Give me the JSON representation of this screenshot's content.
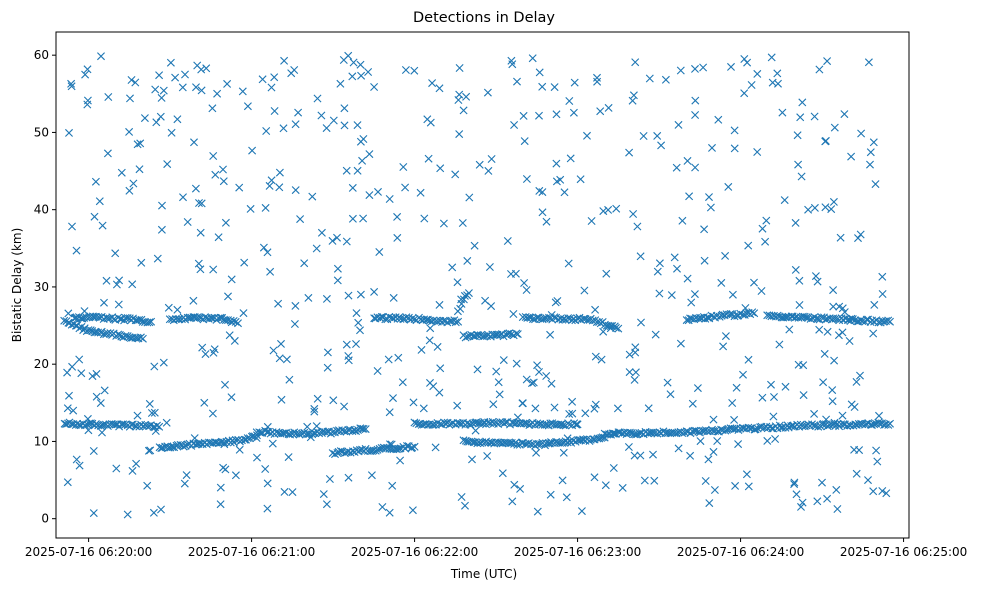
{
  "chart_data": {
    "type": "scatter",
    "title": "Detections in Delay",
    "xlabel": "Time (UTC)",
    "ylabel": "Bistatic Delay (km)",
    "marker": "x",
    "color": "#1f77b4",
    "x_unit": "seconds after 2025-07-16 06:19:00 UTC",
    "xlim": [
      48,
      362
    ],
    "ylim": [
      -2.5,
      63
    ],
    "xticks": [
      {
        "value": 60,
        "label": "2025-07-16 06:20:00"
      },
      {
        "value": 120,
        "label": "2025-07-16 06:21:00"
      },
      {
        "value": 180,
        "label": "2025-07-16 06:22:00"
      },
      {
        "value": 240,
        "label": "2025-07-16 06:23:00"
      },
      {
        "value": 300,
        "label": "2025-07-16 06:24:00"
      },
      {
        "value": 360,
        "label": "2025-07-16 06:25:00"
      }
    ],
    "yticks": [
      {
        "value": 0,
        "label": "0"
      },
      {
        "value": 10,
        "label": "10"
      },
      {
        "value": 20,
        "label": "20"
      },
      {
        "value": 30,
        "label": "30"
      },
      {
        "value": 40,
        "label": "40"
      },
      {
        "value": 50,
        "label": "50"
      },
      {
        "value": 60,
        "label": "60"
      }
    ],
    "grid": false,
    "time_range": [
      "2025-07-16 06:19:51",
      "2025-07-16 06:24:55"
    ],
    "delay_range_km": [
      0.5,
      60
    ],
    "tracks": [
      {
        "description": "lower track A",
        "points": [
          [
            51,
            12.3
          ],
          [
            60,
            12.2
          ],
          [
            70,
            12.1
          ],
          [
            80,
            12.0
          ],
          [
            86,
            11.9
          ]
        ]
      },
      {
        "description": "lower track B",
        "points": [
          [
            86,
            9.2
          ],
          [
            100,
            9.6
          ],
          [
            110,
            9.9
          ],
          [
            118,
            10.2
          ],
          [
            122,
            10.8
          ]
        ]
      },
      {
        "description": "lower track C",
        "points": [
          [
            122,
            11.3
          ],
          [
            130,
            11.1
          ],
          [
            140,
            11.0
          ],
          [
            150,
            11.2
          ],
          [
            162,
            11.6
          ]
        ]
      },
      {
        "description": "lower track D",
        "points": [
          [
            150,
            8.5
          ],
          [
            160,
            8.8
          ],
          [
            170,
            9.1
          ],
          [
            180,
            9.3
          ]
        ]
      },
      {
        "description": "lower track E",
        "points": [
          [
            180,
            12.3
          ],
          [
            195,
            12.3
          ],
          [
            210,
            12.4
          ],
          [
            230,
            12.2
          ],
          [
            240,
            12.2
          ]
        ]
      },
      {
        "description": "lower track F",
        "points": [
          [
            198,
            10.0
          ],
          [
            210,
            9.8
          ],
          [
            225,
            9.6
          ],
          [
            240,
            10.0
          ],
          [
            250,
            10.5
          ]
        ]
      },
      {
        "description": "lower track G",
        "points": [
          [
            250,
            11.0
          ],
          [
            265,
            11.1
          ],
          [
            280,
            11.2
          ],
          [
            300,
            11.6
          ],
          [
            320,
            12.0
          ],
          [
            355,
            12.3
          ]
        ]
      },
      {
        "description": "upper track A",
        "points": [
          [
            51,
            25.5
          ],
          [
            60,
            24.3
          ],
          [
            70,
            23.8
          ],
          [
            80,
            23.3
          ]
        ]
      },
      {
        "description": "upper track B",
        "points": [
          [
            55,
            26.1
          ],
          [
            65,
            26.0
          ],
          [
            75,
            25.8
          ],
          [
            83,
            25.5
          ]
        ]
      },
      {
        "description": "upper track C",
        "points": [
          [
            90,
            25.8
          ],
          [
            100,
            26.0
          ],
          [
            110,
            25.8
          ],
          [
            115,
            25.3
          ]
        ]
      },
      {
        "description": "upper track D",
        "points": [
          [
            165,
            26.0
          ],
          [
            180,
            25.9
          ],
          [
            190,
            25.6
          ],
          [
            196,
            25.5
          ]
        ]
      },
      {
        "description": "upper track E",
        "points": [
          [
            196,
            26.7
          ],
          [
            198,
            28.5
          ],
          [
            200,
            29.2
          ]
        ]
      },
      {
        "description": "upper track F",
        "points": [
          [
            198,
            23.6
          ],
          [
            210,
            23.7
          ],
          [
            218,
            23.9
          ]
        ]
      },
      {
        "description": "upper track G",
        "points": [
          [
            220,
            26.0
          ],
          [
            235,
            25.9
          ],
          [
            245,
            25.8
          ],
          [
            255,
            24.6
          ]
        ]
      },
      {
        "description": "upper track H",
        "points": [
          [
            280,
            25.8
          ],
          [
            295,
            26.3
          ],
          [
            305,
            26.6
          ]
        ]
      },
      {
        "description": "upper track I",
        "points": [
          [
            310,
            26.3
          ],
          [
            330,
            25.9
          ],
          [
            355,
            25.5
          ]
        ]
      }
    ],
    "scattered_noise": {
      "description": "uniform random clutter detections",
      "count": 620,
      "x_range": [
        51,
        355
      ],
      "y_range": [
        0.5,
        60
      ]
    }
  }
}
